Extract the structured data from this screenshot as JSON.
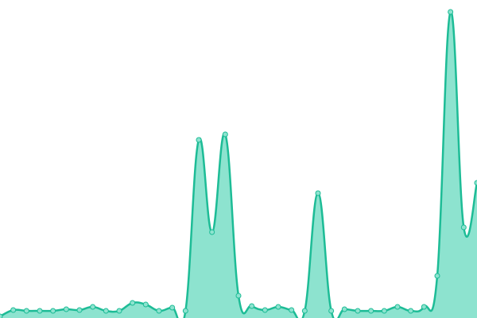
{
  "chart_data": {
    "type": "area",
    "values": [
      2,
      10,
      9,
      9,
      9,
      11,
      10,
      14,
      9,
      9,
      19,
      17,
      9,
      13,
      9,
      224,
      108,
      231,
      28,
      15,
      10,
      14,
      10,
      9,
      157,
      9,
      11,
      9,
      9,
      9,
      14,
      9,
      14,
      53,
      385,
      114,
      170
    ],
    "ylim": [
      0,
      400
    ],
    "color": "#1dbc96",
    "fill": "#8de3cf",
    "smooth": true,
    "markers": true
  }
}
